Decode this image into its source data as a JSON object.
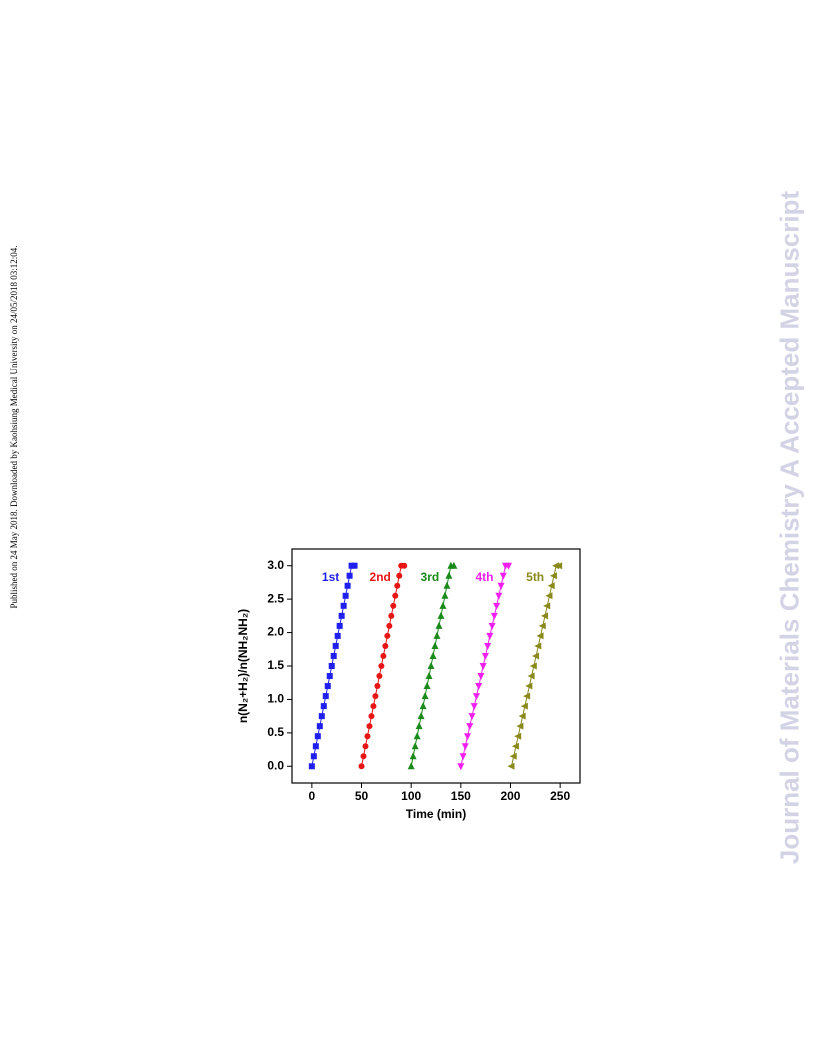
{
  "page": {
    "published_note": "Published on 24 May 2018. Downloaded by Kaohsiung Medical University on 24/05/2018 03:12:04.",
    "watermark": "Journal of Materials Chemistry A Accepted Manuscript"
  },
  "chart_data": {
    "type": "scatter",
    "xlabel": "Time (min)",
    "ylabel": "n(N₂+H₂)/n(NH₂NH₂)",
    "xlim": [
      -20,
      270
    ],
    "ylim": [
      -0.25,
      3.25
    ],
    "xticks": [
      0,
      50,
      100,
      150,
      200,
      250
    ],
    "yticks": [
      {
        "value": 0,
        "label": "0.0"
      },
      0.5,
      {
        "value": 1,
        "label": "1.0"
      },
      1.5,
      {
        "value": 2,
        "label": "2.0"
      },
      2.5,
      {
        "value": 3,
        "label": "3.0"
      }
    ],
    "series": [
      {
        "name": "1st",
        "color": "#1f1fef",
        "marker": "square",
        "x": [
          0,
          2,
          4,
          6,
          8,
          10,
          12,
          14,
          16,
          18,
          20,
          22,
          24,
          26,
          28,
          30,
          32,
          34,
          36,
          38,
          40,
          43
        ],
        "values": [
          0,
          0.15,
          0.3,
          0.45,
          0.6,
          0.75,
          0.9,
          1.05,
          1.2,
          1.35,
          1.5,
          1.65,
          1.8,
          1.95,
          2.1,
          2.25,
          2.4,
          2.55,
          2.7,
          2.85,
          3.0,
          3.0
        ]
      },
      {
        "name": "2nd",
        "color": "#e81515",
        "marker": "circle",
        "x": [
          50,
          52,
          54,
          56,
          58,
          60,
          62,
          64,
          66,
          68,
          70,
          72,
          74,
          76,
          78,
          80,
          82,
          84,
          86,
          88,
          90,
          93
        ],
        "values": [
          0,
          0.15,
          0.3,
          0.45,
          0.6,
          0.75,
          0.9,
          1.05,
          1.2,
          1.35,
          1.5,
          1.65,
          1.8,
          1.95,
          2.1,
          2.25,
          2.4,
          2.55,
          2.7,
          2.85,
          3.0,
          3.0
        ]
      },
      {
        "name": "3rd",
        "color": "#1a8a1a",
        "marker": "triangle-up",
        "x": [
          100,
          102,
          104,
          106,
          108,
          110,
          112,
          114,
          116,
          118,
          120,
          122,
          124,
          126,
          128,
          130,
          132,
          134,
          136,
          138,
          140,
          143
        ],
        "values": [
          0,
          0.15,
          0.3,
          0.45,
          0.6,
          0.75,
          0.9,
          1.05,
          1.2,
          1.35,
          1.5,
          1.65,
          1.8,
          1.95,
          2.1,
          2.25,
          2.4,
          2.55,
          2.7,
          2.85,
          3.0,
          3.0
        ]
      },
      {
        "name": "4th",
        "color": "#f020f0",
        "marker": "triangle-down",
        "x": [
          150,
          152.25,
          154.5,
          156.75,
          159,
          161.25,
          163.5,
          165.75,
          168,
          170.25,
          172.5,
          174.75,
          177,
          179.25,
          181.5,
          183.75,
          186,
          188.25,
          190.5,
          192.75,
          195,
          198
        ],
        "values": [
          0,
          0.15,
          0.3,
          0.45,
          0.6,
          0.75,
          0.9,
          1.05,
          1.2,
          1.35,
          1.5,
          1.65,
          1.8,
          1.95,
          2.1,
          2.25,
          2.4,
          2.55,
          2.7,
          2.85,
          3.0,
          3.0
        ]
      },
      {
        "name": "5th",
        "color": "#8a8a1c",
        "marker": "triangle-left",
        "x": [
          201,
          203.25,
          205.5,
          207.75,
          210,
          212.25,
          214.5,
          216.75,
          219,
          221.25,
          223.5,
          225.75,
          228,
          230.25,
          232.5,
          234.75,
          237,
          239.25,
          241.5,
          243.75,
          246,
          249
        ],
        "values": [
          0,
          0.15,
          0.3,
          0.45,
          0.6,
          0.75,
          0.9,
          1.05,
          1.2,
          1.35,
          1.5,
          1.65,
          1.8,
          1.95,
          2.1,
          2.25,
          2.4,
          2.55,
          2.7,
          2.85,
          3.0,
          3.0
        ]
      }
    ]
  }
}
